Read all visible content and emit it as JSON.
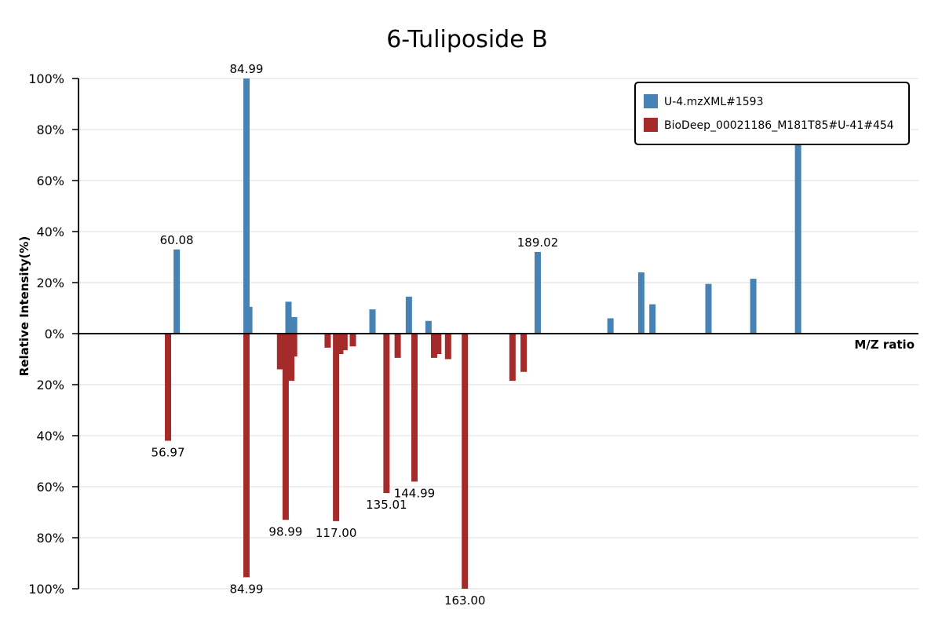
{
  "chart_data": {
    "type": "bar",
    "title": "6-Tuliposide B",
    "xlabel": "M/Z ratio",
    "ylabel": "Relative Intensity(%)",
    "x_range": [
      25,
      325
    ],
    "y_range": [
      -100,
      100
    ],
    "y_ticks": [
      {
        "value": 100,
        "label": "100%"
      },
      {
        "value": 80,
        "label": "80%"
      },
      {
        "value": 60,
        "label": "60%"
      },
      {
        "value": 40,
        "label": "40%"
      },
      {
        "value": 20,
        "label": "20%"
      },
      {
        "value": 0,
        "label": "0%"
      },
      {
        "value": -20,
        "label": "20%"
      },
      {
        "value": -40,
        "label": "40%"
      },
      {
        "value": -60,
        "label": "60%"
      },
      {
        "value": -80,
        "label": "80%"
      },
      {
        "value": -100,
        "label": "100%"
      }
    ],
    "grid": true,
    "legend_position": "top-right",
    "series": [
      {
        "name": "U-4.mzXML#1593",
        "color": "#4682b4",
        "direction": "up",
        "peaks": [
          {
            "mz": 60.08,
            "intensity": 33,
            "label": "60.08"
          },
          {
            "mz": 84.99,
            "intensity": 100,
            "label": "84.99"
          },
          {
            "mz": 86.0,
            "intensity": 10.5
          },
          {
            "mz": 100.0,
            "intensity": 12.5
          },
          {
            "mz": 102.0,
            "intensity": 6.5
          },
          {
            "mz": 130.0,
            "intensity": 9.5
          },
          {
            "mz": 143.0,
            "intensity": 14.5
          },
          {
            "mz": 150.0,
            "intensity": 5
          },
          {
            "mz": 189.02,
            "intensity": 32,
            "label": "189.02"
          },
          {
            "mz": 215.0,
            "intensity": 6
          },
          {
            "mz": 226.0,
            "intensity": 24
          },
          {
            "mz": 230.0,
            "intensity": 11.5
          },
          {
            "mz": 250.0,
            "intensity": 19.5
          },
          {
            "mz": 266.0,
            "intensity": 21.5
          },
          {
            "mz": 282.0,
            "intensity": 76
          }
        ]
      },
      {
        "name": "BioDeep_00021186_M181T85#U-41#454",
        "color": "#a52a2a",
        "direction": "down",
        "peaks": [
          {
            "mz": 56.97,
            "intensity": 42,
            "label": "56.97"
          },
          {
            "mz": 84.99,
            "intensity": 95.5,
            "label": "84.99"
          },
          {
            "mz": 97.0,
            "intensity": 14
          },
          {
            "mz": 98.99,
            "intensity": 73,
            "label": "98.99"
          },
          {
            "mz": 100.0,
            "intensity": 13
          },
          {
            "mz": 101.0,
            "intensity": 18.5
          },
          {
            "mz": 102.0,
            "intensity": 9
          },
          {
            "mz": 114.0,
            "intensity": 5.5
          },
          {
            "mz": 117.0,
            "intensity": 73.5,
            "label": "117.00"
          },
          {
            "mz": 118.5,
            "intensity": 8
          },
          {
            "mz": 120.0,
            "intensity": 6.5
          },
          {
            "mz": 123.0,
            "intensity": 5
          },
          {
            "mz": 135.01,
            "intensity": 62.5,
            "label": "135.01"
          },
          {
            "mz": 139.0,
            "intensity": 9.5
          },
          {
            "mz": 144.99,
            "intensity": 58,
            "label": "144.99"
          },
          {
            "mz": 152.0,
            "intensity": 9.5
          },
          {
            "mz": 153.5,
            "intensity": 8
          },
          {
            "mz": 157.0,
            "intensity": 10
          },
          {
            "mz": 163.0,
            "intensity": 100,
            "label": "163.00"
          },
          {
            "mz": 180.0,
            "intensity": 18.5
          },
          {
            "mz": 184.0,
            "intensity": 15
          }
        ]
      }
    ]
  }
}
